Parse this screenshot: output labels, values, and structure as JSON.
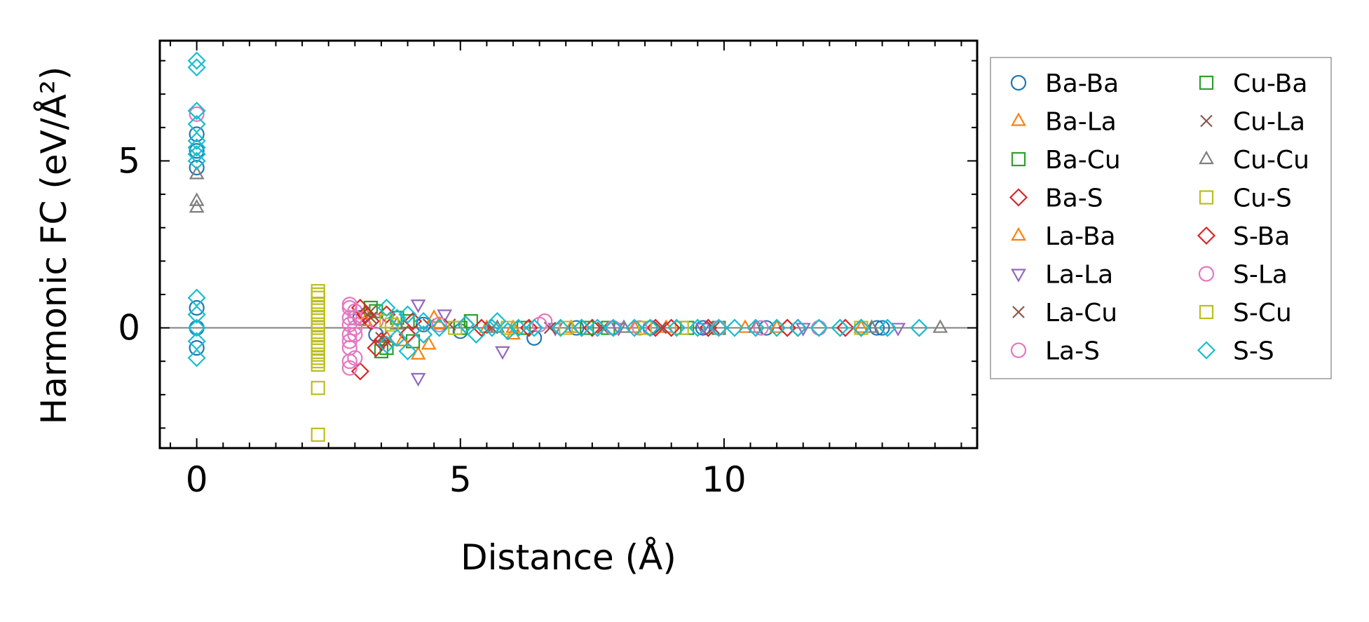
{
  "chart_data": {
    "type": "scatter",
    "xlabel": "Distance (Å)",
    "ylabel": "Harmonic FC (eV/Å²)",
    "xlim": [
      -0.7,
      14.8
    ],
    "ylim": [
      -3.6,
      8.6
    ],
    "x_ticks": [
      0,
      5,
      10
    ],
    "y_ticks": [
      0,
      5
    ],
    "x_tick_labels": [
      "0",
      "5",
      "10"
    ],
    "y_tick_labels": [
      "0",
      "5"
    ],
    "reference_line_y": 0,
    "grid": false,
    "legend_position": "outside-right",
    "legend_columns": 2,
    "series": [
      {
        "name": "Ba-Ba",
        "marker": "circle",
        "color": "#1f77b4",
        "points": [
          [
            0,
            5.8
          ],
          [
            0,
            4.8
          ],
          [
            0,
            5.3
          ],
          [
            0,
            0.6
          ],
          [
            0,
            0.0
          ],
          [
            0,
            -0.6
          ],
          [
            3.1,
            0.3
          ],
          [
            3.4,
            -0.2
          ],
          [
            4.3,
            0.1
          ],
          [
            5.0,
            -0.1
          ],
          [
            6.4,
            -0.3
          ],
          [
            7.2,
            0.0
          ],
          [
            8.6,
            0.0
          ],
          [
            9.6,
            0.0
          ],
          [
            10.8,
            0.0
          ],
          [
            12.9,
            0.0
          ],
          [
            13.0,
            0.0
          ]
        ]
      },
      {
        "name": "Ba-La",
        "marker": "triangle-up",
        "color": "#ff7f0e",
        "points": [
          [
            3.2,
            0.4
          ],
          [
            3.6,
            -0.3
          ],
          [
            4.2,
            -0.8
          ],
          [
            4.4,
            -0.5
          ],
          [
            4.6,
            0.1
          ],
          [
            5.5,
            0.0
          ],
          [
            6.0,
            -0.2
          ],
          [
            7.1,
            0.0
          ],
          [
            8.9,
            0.0
          ],
          [
            10.4,
            0.0
          ],
          [
            12.6,
            0.0
          ]
        ]
      },
      {
        "name": "Ba-Cu",
        "marker": "square",
        "color": "#2ca02c",
        "points": [
          [
            3.3,
            0.6
          ],
          [
            3.5,
            -0.7
          ],
          [
            3.8,
            0.3
          ],
          [
            4.1,
            -0.4
          ],
          [
            5.2,
            0.2
          ],
          [
            6.2,
            0.0
          ],
          [
            7.8,
            0.0
          ],
          [
            9.9,
            0.0
          ]
        ]
      },
      {
        "name": "Ba-S",
        "marker": "diamond",
        "color": "#d62728",
        "points": [
          [
            3.1,
            0.6
          ],
          [
            3.1,
            -1.3
          ],
          [
            3.3,
            0.2
          ],
          [
            3.4,
            -0.6
          ],
          [
            3.6,
            0.4
          ],
          [
            4.0,
            -0.2
          ],
          [
            5.1,
            0.1
          ],
          [
            6.3,
            0.0
          ],
          [
            7.5,
            0.0
          ],
          [
            8.7,
            0.0
          ],
          [
            9.7,
            0.0
          ],
          [
            11.4,
            0.0
          ],
          [
            12.6,
            0.0
          ]
        ]
      },
      {
        "name": "La-Ba",
        "marker": "triangle-up",
        "color": "#ff7f0e",
        "points": [
          [
            3.2,
            0.2
          ],
          [
            3.9,
            -0.4
          ],
          [
            4.5,
            0.3
          ],
          [
            6.0,
            0.0
          ],
          [
            8.3,
            0.0
          ],
          [
            11.0,
            0.0
          ]
        ]
      },
      {
        "name": "La-La",
        "marker": "triangle-down",
        "color": "#9467bd",
        "points": [
          [
            4.2,
            0.7
          ],
          [
            4.2,
            -1.5
          ],
          [
            4.7,
            0.4
          ],
          [
            5.8,
            -0.7
          ],
          [
            6.8,
            0.0
          ],
          [
            8.0,
            0.0
          ],
          [
            9.6,
            0.0
          ],
          [
            11.5,
            0.0
          ],
          [
            13.3,
            0.0
          ]
        ]
      },
      {
        "name": "La-Cu",
        "marker": "x",
        "color": "#8c564b",
        "points": [
          [
            3.3,
            0.5
          ],
          [
            3.5,
            -0.3
          ],
          [
            4.4,
            0.1
          ],
          [
            5.6,
            0.0
          ],
          [
            7.7,
            0.0
          ],
          [
            9.8,
            0.0
          ]
        ]
      },
      {
        "name": "La-S",
        "marker": "circle",
        "color": "#e377c2",
        "points": [
          [
            0,
            6.4
          ],
          [
            2.9,
            0.7
          ],
          [
            2.9,
            0.3
          ],
          [
            2.9,
            -0.2
          ],
          [
            2.9,
            -0.6
          ],
          [
            2.9,
            -1.2
          ],
          [
            3.0,
            0.5
          ],
          [
            3.0,
            0.0
          ],
          [
            3.0,
            -0.9
          ],
          [
            3.4,
            0.2
          ],
          [
            4.6,
            0.1
          ],
          [
            6.6,
            0.2
          ],
          [
            7.9,
            0.0
          ],
          [
            9.9,
            0.0
          ],
          [
            11.8,
            0.0
          ]
        ]
      },
      {
        "name": "Cu-Ba",
        "marker": "square",
        "color": "#2ca02c",
        "points": [
          [
            3.4,
            0.5
          ],
          [
            3.6,
            -0.6
          ],
          [
            4.0,
            0.2
          ],
          [
            5.0,
            0.0
          ],
          [
            7.4,
            0.0
          ],
          [
            9.3,
            0.0
          ]
        ]
      },
      {
        "name": "Cu-La",
        "marker": "x",
        "color": "#8c564b",
        "points": [
          [
            3.3,
            0.3
          ],
          [
            3.6,
            -0.4
          ],
          [
            4.8,
            0.1
          ],
          [
            6.7,
            0.0
          ],
          [
            8.8,
            0.0
          ]
        ]
      },
      {
        "name": "Cu-Cu",
        "marker": "triangle-up",
        "color": "#7f7f7f",
        "points": [
          [
            0,
            4.6
          ],
          [
            0,
            3.6
          ],
          [
            0,
            3.8
          ],
          [
            3.8,
            0.1
          ],
          [
            5.7,
            0.0
          ],
          [
            8.1,
            0.0
          ],
          [
            10.6,
            0.0
          ],
          [
            12.8,
            0.0
          ],
          [
            14.1,
            0.0
          ]
        ]
      },
      {
        "name": "Cu-S",
        "marker": "square",
        "color": "#bcbd22",
        "points": [
          [
            2.3,
            1.1
          ],
          [
            2.3,
            0.9
          ],
          [
            2.3,
            0.6
          ],
          [
            2.3,
            0.3
          ],
          [
            2.3,
            0.0
          ],
          [
            2.3,
            -0.3
          ],
          [
            2.3,
            -0.6
          ],
          [
            2.3,
            -0.9
          ],
          [
            2.3,
            -1.1
          ],
          [
            2.3,
            -1.8
          ],
          [
            2.3,
            -3.2
          ],
          [
            3.6,
            0.2
          ],
          [
            4.9,
            0.0
          ],
          [
            7.0,
            0.0
          ],
          [
            9.2,
            0.0
          ],
          [
            12.6,
            0.0
          ]
        ]
      },
      {
        "name": "S-Ba",
        "marker": "diamond",
        "color": "#d62728",
        "points": [
          [
            3.2,
            0.4
          ],
          [
            3.5,
            -0.4
          ],
          [
            4.1,
            0.2
          ],
          [
            5.4,
            0.0
          ],
          [
            7.3,
            0.0
          ],
          [
            9.0,
            0.0
          ],
          [
            11.2,
            0.0
          ],
          [
            12.3,
            0.0
          ]
        ]
      },
      {
        "name": "S-La",
        "marker": "circle",
        "color": "#e377c2",
        "points": [
          [
            2.9,
            0.6
          ],
          [
            2.9,
            0.1
          ],
          [
            2.9,
            -0.4
          ],
          [
            2.9,
            -1.0
          ],
          [
            3.0,
            0.3
          ],
          [
            3.0,
            -0.2
          ],
          [
            6.5,
            0.1
          ],
          [
            8.4,
            0.0
          ],
          [
            10.7,
            0.0
          ]
        ]
      },
      {
        "name": "S-Cu",
        "marker": "square",
        "color": "#bcbd22",
        "points": [
          [
            2.3,
            1.0
          ],
          [
            2.3,
            0.7
          ],
          [
            2.3,
            0.4
          ],
          [
            2.3,
            0.1
          ],
          [
            2.3,
            -0.2
          ],
          [
            2.3,
            -0.5
          ],
          [
            2.3,
            -0.8
          ],
          [
            2.3,
            -1.0
          ],
          [
            3.7,
            0.1
          ],
          [
            5.9,
            0.0
          ],
          [
            8.5,
            0.0
          ]
        ]
      },
      {
        "name": "S-S",
        "marker": "diamond",
        "color": "#17becf",
        "points": [
          [
            0,
            8.0
          ],
          [
            0,
            7.8
          ],
          [
            0,
            6.5
          ],
          [
            0,
            6.1
          ],
          [
            0,
            5.6
          ],
          [
            0,
            5.4
          ],
          [
            0,
            5.2
          ],
          [
            0,
            5.0
          ],
          [
            0,
            0.9
          ],
          [
            0,
            0.4
          ],
          [
            0,
            0.0
          ],
          [
            0,
            -0.4
          ],
          [
            0,
            -0.9
          ],
          [
            3.6,
            0.6
          ],
          [
            3.6,
            -0.5
          ],
          [
            3.8,
            0.3
          ],
          [
            3.8,
            -0.3
          ],
          [
            4.0,
            0.4
          ],
          [
            4.0,
            -0.7
          ],
          [
            4.3,
            0.2
          ],
          [
            4.3,
            -0.2
          ],
          [
            4.6,
            0.0
          ],
          [
            5.1,
            0.1
          ],
          [
            5.3,
            -0.2
          ],
          [
            5.6,
            0.0
          ],
          [
            5.7,
            0.2
          ],
          [
            5.9,
            -0.1
          ],
          [
            6.1,
            0.0
          ],
          [
            6.4,
            0.0
          ],
          [
            6.9,
            0.0
          ],
          [
            7.3,
            0.0
          ],
          [
            7.6,
            0.0
          ],
          [
            7.9,
            0.0
          ],
          [
            8.3,
            0.0
          ],
          [
            8.6,
            0.0
          ],
          [
            9.1,
            0.0
          ],
          [
            9.5,
            0.0
          ],
          [
            9.9,
            0.0
          ],
          [
            10.2,
            0.0
          ],
          [
            10.6,
            0.0
          ],
          [
            11.0,
            0.0
          ],
          [
            11.4,
            0.0
          ],
          [
            11.8,
            0.0
          ],
          [
            12.2,
            0.0
          ],
          [
            12.6,
            0.0
          ],
          [
            13.1,
            0.0
          ],
          [
            13.7,
            0.0
          ]
        ]
      }
    ]
  }
}
